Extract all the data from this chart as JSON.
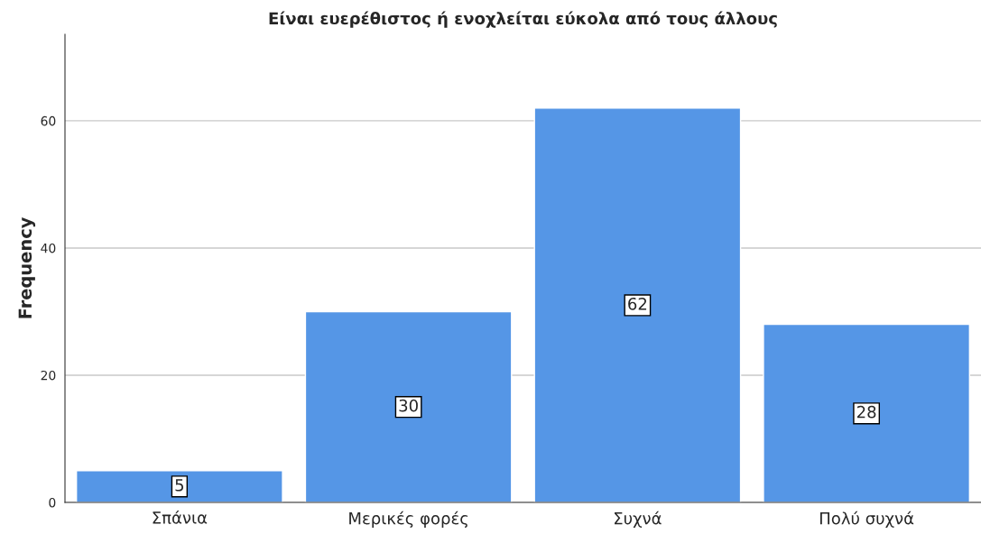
{
  "chart_data": {
    "type": "bar",
    "title": "Είναι ευερέθιστος ή ενοχλείται εύκολα από τους άλλους",
    "ylabel": "Frequency",
    "categories": [
      "Σπάνια",
      "Μερικές φορές",
      "Συχνά",
      "Πολύ συχνά"
    ],
    "values": [
      5,
      30,
      62,
      28
    ],
    "color": "#5596e6",
    "ylim": [
      0,
      73.6
    ],
    "yticks": [
      0,
      20,
      40,
      60
    ],
    "grid": "y",
    "data_labels": true
  }
}
